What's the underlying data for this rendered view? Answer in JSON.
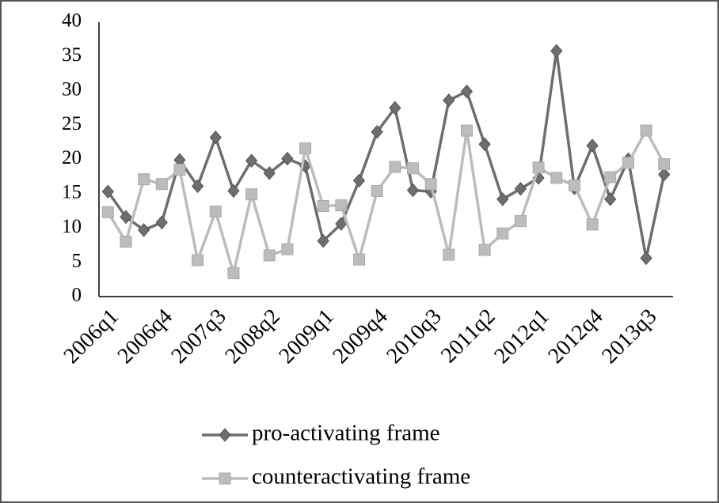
{
  "chart_data": {
    "type": "line",
    "categories": [
      "2006q1",
      null,
      null,
      "2006q4",
      null,
      null,
      "2007q3",
      null,
      null,
      "2008q2",
      null,
      null,
      "2009q1",
      null,
      null,
      "2009q4",
      null,
      null,
      "2010q3",
      null,
      null,
      "2011q2",
      null,
      null,
      "2012q1",
      null,
      null,
      "2012q4",
      null,
      null,
      "2013q3",
      null
    ],
    "series": [
      {
        "name": "pro-activating frame",
        "color": "#6e6e6e",
        "marker": "diamond",
        "values": [
          15.3,
          11.6,
          9.7,
          10.8,
          19.9,
          16.1,
          23.2,
          15.4,
          19.8,
          18.0,
          20.1,
          19.0,
          8.1,
          10.6,
          16.9,
          24.0,
          27.5,
          15.5,
          15.3,
          28.6,
          29.9,
          22.2,
          14.2,
          15.7,
          17.3,
          35.8,
          15.8,
          22.0,
          14.2,
          20.0,
          5.6,
          17.8
        ]
      },
      {
        "name": "counteractivating frame",
        "color": "#bcbcbc",
        "marker": "square",
        "values": [
          12.3,
          8.0,
          17.1,
          16.4,
          18.5,
          5.3,
          12.4,
          3.4,
          14.9,
          6.0,
          6.9,
          21.6,
          13.2,
          13.3,
          5.4,
          15.4,
          18.9,
          18.7,
          16.4,
          6.1,
          24.2,
          6.8,
          9.2,
          11.0,
          18.8,
          17.3,
          16.2,
          10.5,
          17.4,
          19.5,
          24.2,
          19.3
        ]
      }
    ],
    "ylim": [
      0,
      40
    ],
    "yticks": [
      0,
      5,
      10,
      15,
      20,
      25,
      30,
      35,
      40
    ],
    "grid": false,
    "legend": "bottom"
  }
}
